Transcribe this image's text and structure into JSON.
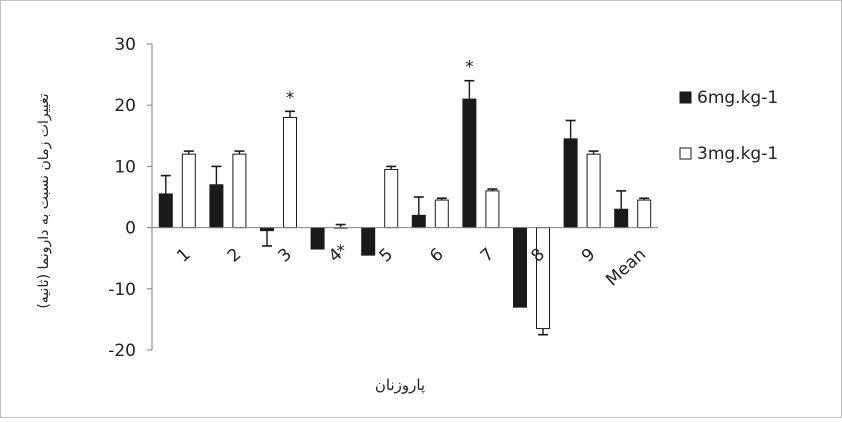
{
  "chart_data": {
    "type": "bar",
    "title": "",
    "xlabel": "پاروزنان",
    "ylabel": "تغییرات زمان نسبت به دارونما (ثانیه)",
    "ylim": [
      -20,
      30
    ],
    "yticks": [
      30,
      20,
      10,
      0,
      -10,
      -20
    ],
    "ytick_labels": [
      "30",
      "20",
      "10",
      "0",
      "-10",
      "-20"
    ],
    "grid": false,
    "legend_position": "right",
    "categories": [
      "1",
      "2",
      "3",
      "4",
      "5",
      "6",
      "7",
      "8",
      "9",
      "Mean"
    ],
    "series": [
      {
        "name": "6mg.kg-1",
        "color": "#1a1a1a",
        "values": [
          5.5,
          7,
          -0.5,
          -3.5,
          -4.5,
          2,
          21,
          -13,
          14.5,
          3
        ],
        "errors": [
          3,
          3,
          2.5,
          0,
          0,
          3,
          3,
          0,
          3,
          3
        ]
      },
      {
        "name": "3mg.kg-1",
        "color": "#ffffff",
        "values": [
          12,
          12,
          18,
          0,
          9.5,
          4.5,
          6,
          -16.5,
          12,
          4.5
        ],
        "errors": [
          0.5,
          0.5,
          1,
          0.5,
          0.5,
          0.3,
          0.3,
          1,
          0.5,
          0.3
        ]
      }
    ],
    "annotations": [
      {
        "text": "*",
        "category": "3",
        "series": "3mg.kg-1",
        "position": "above"
      },
      {
        "text": "*",
        "category": "4",
        "series": "3mg.kg-1",
        "position": "below"
      },
      {
        "text": "*",
        "category": "7",
        "series": "6mg.kg-1",
        "position": "above"
      }
    ]
  }
}
